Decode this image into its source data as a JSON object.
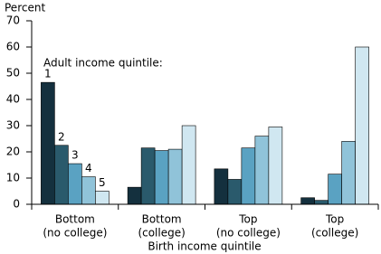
{
  "chart_data": {
    "type": "bar",
    "y_label": "Percent",
    "x_label": "Birth income quintile",
    "annotation": "Adult income quintile:",
    "categories": [
      [
        "Bottom",
        "(no college)"
      ],
      [
        "Bottom",
        "(college)"
      ],
      [
        "Top",
        "(no college)"
      ],
      [
        "Top",
        "(college)"
      ]
    ],
    "series": [
      {
        "name": "1",
        "color": "#14303e",
        "values": [
          46.5,
          6.5,
          13.5,
          2.5
        ]
      },
      {
        "name": "2",
        "color": "#2a5a6c",
        "values": [
          22.5,
          21.5,
          9.5,
          1.5
        ]
      },
      {
        "name": "3",
        "color": "#5aa2c2",
        "values": [
          15.5,
          20.5,
          21.5,
          11.5
        ]
      },
      {
        "name": "4",
        "color": "#90c3d9",
        "values": [
          10.5,
          21,
          26,
          24
        ]
      },
      {
        "name": "5",
        "color": "#d0e7f1",
        "values": [
          5,
          30,
          29.5,
          60
        ]
      }
    ],
    "ylim": [
      0,
      70
    ],
    "yticks": [
      0,
      10,
      20,
      30,
      40,
      50,
      60,
      70
    ]
  }
}
